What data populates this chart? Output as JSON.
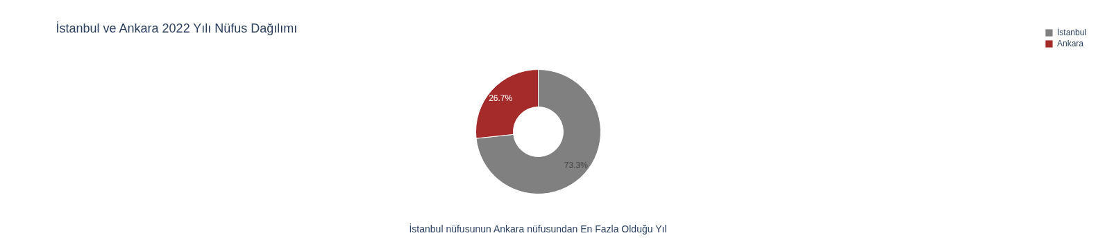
{
  "chart_data": {
    "type": "donut",
    "title": "İstanbul ve Ankara 2022 Yılı Nüfus Dağılımı",
    "categories": [
      "İstanbul",
      "Ankara"
    ],
    "values": [
      73.3,
      26.7
    ],
    "colors": [
      "#808080",
      "#a52a2a"
    ],
    "value_labels": [
      "73.3%",
      "26.7%"
    ],
    "legend": "top right",
    "annotations": [
      "İstanbul nüfusunun Ankara nüfusundan En Fazla Olduğu Yıl"
    ]
  }
}
